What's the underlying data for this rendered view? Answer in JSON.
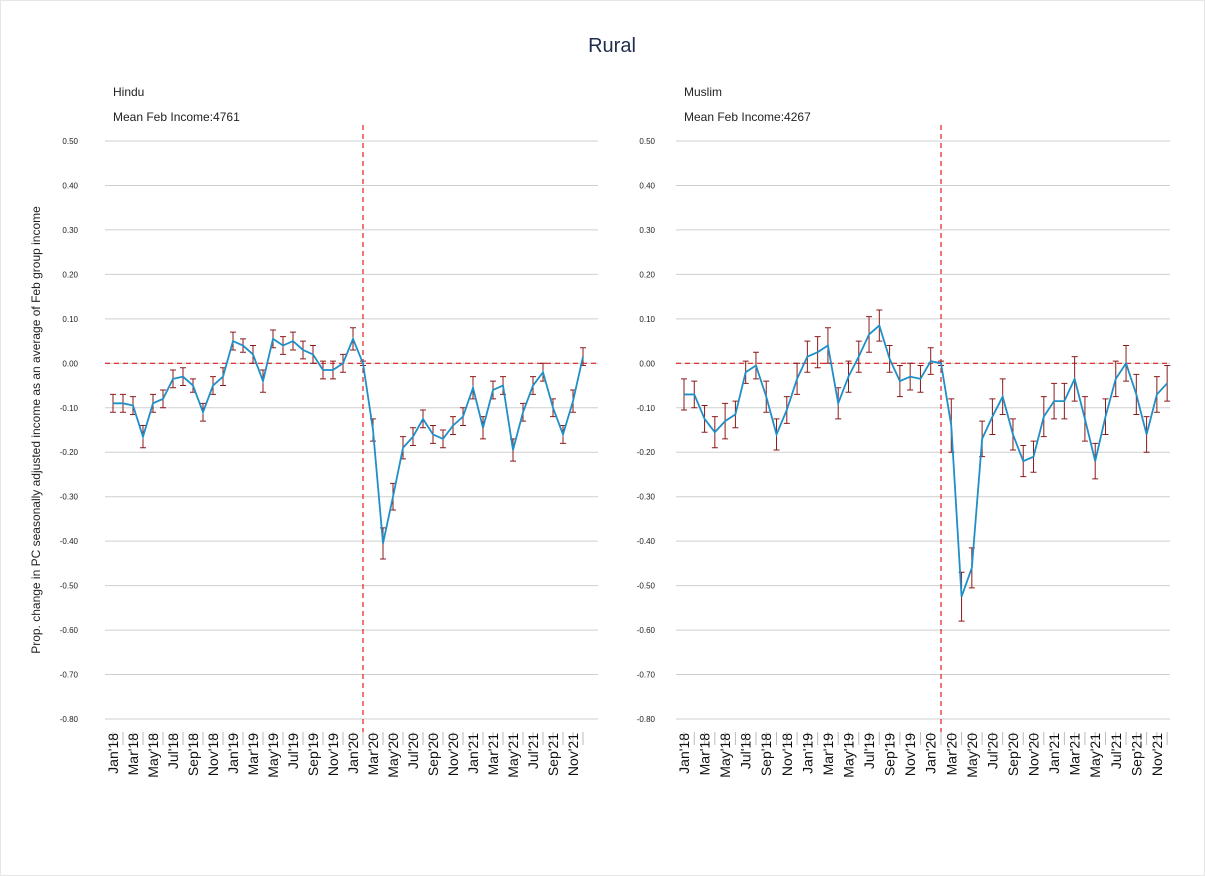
{
  "title": "Rural",
  "ylabel": "Prop. change in PC seasonally adjusted income as an average of Feb group income",
  "chart_data": [
    {
      "type": "line",
      "title": "Hindu",
      "subtitle": "Mean Feb Income:4761",
      "categories": [
        "Jan'18",
        null,
        "Mar'18",
        null,
        "May'18",
        null,
        "Jul'18",
        null,
        "Sep'18",
        null,
        "Nov'18",
        null,
        "Jan'19",
        null,
        "Mar'19",
        null,
        "May'19",
        null,
        "Jul'19",
        null,
        "Sep'19",
        null,
        "Nov'19",
        null,
        "Jan'20",
        null,
        "Mar'20",
        null,
        "May'20",
        null,
        "Jul'20",
        null,
        "Sep'20",
        null,
        "Nov'20",
        null,
        "Jan'21",
        null,
        "Mar'21",
        null,
        "May'21",
        null,
        "Jul'21",
        null,
        "Sep'21",
        null,
        "Nov'21",
        null
      ],
      "series": [
        {
          "color": "#1f8fc8",
          "error_color": "#8b1a1a",
          "values": [
            -0.09,
            -0.09,
            -0.095,
            -0.165,
            -0.09,
            -0.08,
            -0.035,
            -0.03,
            -0.05,
            -0.11,
            -0.05,
            -0.03,
            0.05,
            0.04,
            0.02,
            -0.04,
            0.055,
            0.04,
            0.05,
            0.03,
            0.02,
            -0.015,
            -0.015,
            0.0,
            0.055,
            0.0,
            -0.15,
            -0.405,
            -0.3,
            -0.19,
            -0.165,
            -0.125,
            -0.16,
            -0.17,
            -0.14,
            -0.12,
            -0.055,
            -0.145,
            -0.06,
            -0.05,
            -0.195,
            -0.11,
            -0.05,
            -0.02,
            -0.1,
            -0.16,
            -0.085,
            0.015
          ],
          "errors": [
            0.02,
            0.02,
            0.02,
            0.025,
            0.02,
            0.02,
            0.02,
            0.02,
            0.015,
            0.02,
            0.02,
            0.02,
            0.02,
            0.015,
            0.02,
            0.025,
            0.02,
            0.02,
            0.02,
            0.02,
            0.02,
            0.02,
            0.02,
            0.02,
            0.025,
            0.005,
            0.025,
            0.035,
            0.03,
            0.025,
            0.02,
            0.02,
            0.02,
            0.02,
            0.02,
            0.02,
            0.025,
            0.025,
            0.02,
            0.02,
            0.025,
            0.02,
            0.02,
            0.02,
            0.02,
            0.02,
            0.025,
            0.02
          ]
        }
      ],
      "ylim": [
        -0.8,
        0.5
      ],
      "yticks": [
        {
          "value": -0.8,
          "label": "-0.80"
        },
        {
          "value": -0.7,
          "label": "-0.70"
        },
        {
          "value": -0.6,
          "label": "-0.60"
        },
        {
          "value": -0.5,
          "label": "-0.50"
        },
        {
          "value": -0.4,
          "label": "-0.40"
        },
        {
          "value": -0.3,
          "label": "-0.30"
        },
        {
          "value": -0.2,
          "label": "-0.20"
        },
        {
          "value": -0.1,
          "label": "-0.10"
        },
        {
          "value": 0,
          "label": "0.00"
        },
        {
          "value": 0.1,
          "label": "0.10"
        },
        {
          "value": 0.2,
          "label": "0.20"
        },
        {
          "value": 0.3,
          "label": "0.30"
        },
        {
          "value": 0.4,
          "label": "0.40"
        },
        {
          "value": 0.5,
          "label": "0.50"
        }
      ],
      "grid": true,
      "reference_x": 25,
      "reference_y": 0,
      "reference_color": "#e02020"
    },
    {
      "type": "line",
      "title": "Muslim",
      "subtitle": "Mean Feb Income:4267",
      "categories": [
        "Jan'18",
        null,
        "Mar'18",
        null,
        "May'18",
        null,
        "Jul'18",
        null,
        "Sep'18",
        null,
        "Nov'18",
        null,
        "Jan'19",
        null,
        "Mar'19",
        null,
        "May'19",
        null,
        "Jul'19",
        null,
        "Sep'19",
        null,
        "Nov'19",
        null,
        "Jan'20",
        null,
        "Mar'20",
        null,
        "May'20",
        null,
        "Jul'20",
        null,
        "Sep'20",
        null,
        "Nov'20",
        null,
        "Jan'21",
        null,
        "Mar'21",
        null,
        "May'21",
        null,
        "Jul'21",
        null,
        "Sep'21",
        null,
        "Nov'21",
        null
      ],
      "series": [
        {
          "color": "#1f8fc8",
          "error_color": "#8b1a1a",
          "values": [
            -0.07,
            -0.07,
            -0.125,
            -0.155,
            -0.13,
            -0.115,
            -0.02,
            -0.005,
            -0.075,
            -0.16,
            -0.105,
            -0.035,
            0.015,
            0.025,
            0.04,
            -0.09,
            -0.03,
            0.015,
            0.065,
            0.085,
            0.01,
            -0.04,
            -0.03,
            -0.035,
            0.005,
            0.0,
            -0.14,
            -0.525,
            -0.46,
            -0.17,
            -0.12,
            -0.075,
            -0.16,
            -0.22,
            -0.21,
            -0.12,
            -0.085,
            -0.085,
            -0.035,
            -0.125,
            -0.22,
            -0.12,
            -0.035,
            0.0,
            -0.07,
            -0.16,
            -0.07,
            -0.045
          ],
          "errors": [
            0.035,
            0.03,
            0.03,
            0.035,
            0.04,
            0.03,
            0.025,
            0.03,
            0.035,
            0.035,
            0.03,
            0.035,
            0.035,
            0.035,
            0.04,
            0.035,
            0.035,
            0.035,
            0.04,
            0.035,
            0.03,
            0.035,
            0.03,
            0.03,
            0.03,
            0.005,
            0.06,
            0.055,
            0.045,
            0.04,
            0.04,
            0.04,
            0.035,
            0.035,
            0.035,
            0.045,
            0.04,
            0.04,
            0.05,
            0.05,
            0.04,
            0.04,
            0.04,
            0.04,
            0.045,
            0.04,
            0.04,
            0.04
          ]
        }
      ],
      "ylim": [
        -0.8,
        0.5
      ],
      "yticks": [
        {
          "value": -0.8,
          "label": "-0.80"
        },
        {
          "value": -0.7,
          "label": "-0.70"
        },
        {
          "value": -0.6,
          "label": "-0.60"
        },
        {
          "value": -0.5,
          "label": "-0.50"
        },
        {
          "value": -0.4,
          "label": "-0.40"
        },
        {
          "value": -0.3,
          "label": "-0.30"
        },
        {
          "value": -0.2,
          "label": "-0.20"
        },
        {
          "value": -0.1,
          "label": "-0.10"
        },
        {
          "value": 0,
          "label": "0.00"
        },
        {
          "value": 0.1,
          "label": "0.10"
        },
        {
          "value": 0.2,
          "label": "0.20"
        },
        {
          "value": 0.3,
          "label": "0.30"
        },
        {
          "value": 0.4,
          "label": "0.40"
        },
        {
          "value": 0.5,
          "label": "0.50"
        }
      ],
      "grid": true,
      "reference_x": 25,
      "reference_y": 0,
      "reference_color": "#e02020"
    }
  ]
}
